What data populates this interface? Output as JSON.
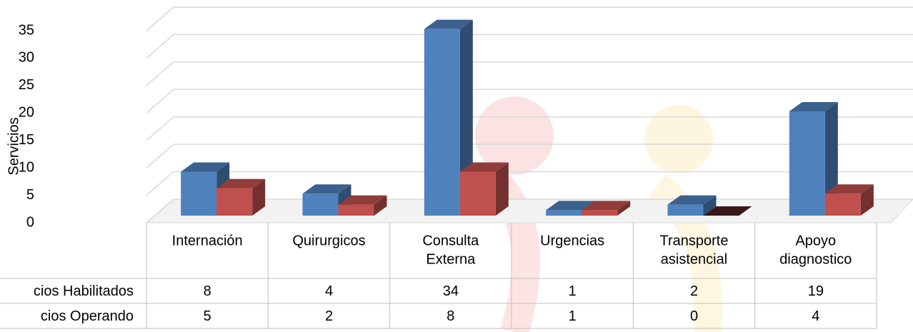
{
  "chart_data": {
    "type": "bar3d",
    "y_axis_label": "Servicios",
    "categories": [
      [
        "Internación"
      ],
      [
        "Quirurgicos"
      ],
      [
        "Consulta",
        "Externa"
      ],
      [
        "Urgencias"
      ],
      [
        "Transporte",
        "asistencial"
      ],
      [
        "Apoyo",
        "diagnostico"
      ]
    ],
    "series": [
      {
        "name": "cios Habilitados",
        "color": "#4f81bd",
        "values": [
          8,
          4,
          34,
          1,
          2,
          19
        ]
      },
      {
        "name": "cios Operando",
        "color": "#c0504d",
        "values": [
          5,
          2,
          8,
          1,
          0,
          4
        ]
      }
    ],
    "ylim": [
      0,
      35
    ],
    "yticks": [
      0,
      5,
      10,
      15,
      20,
      25,
      30,
      35
    ],
    "grid": true,
    "data_table": true
  }
}
